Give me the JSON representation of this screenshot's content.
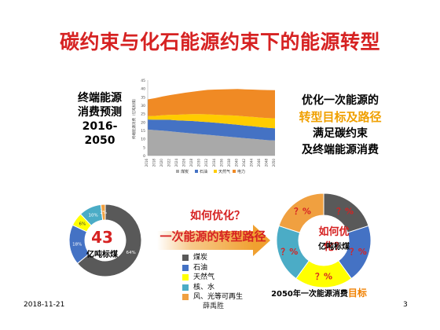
{
  "slide": {
    "title": "碳约束与化石能源约束下的能源转型",
    "left_label": [
      "终端能源",
      "消费预测",
      "2016-",
      "2050"
    ],
    "right_label": {
      "line1": "优化一次能源的",
      "line2": "转型目标及路径",
      "line3": "满足碳约束",
      "line4": "及终端能源消费"
    },
    "mid_question": "如何优化？",
    "mid_path": "一次能源的转型路径",
    "left_center_value": "43",
    "left_center_unit": "亿吨标煤",
    "right_center_question": "如何优化？",
    "right_center_unit": "亿吨标煤",
    "target_caption_prefix": "2050年一次能源消费",
    "target_caption_highlight": "目标",
    "unknown_pct": "？%",
    "footer": {
      "date": "2018-11-21",
      "author": "薛禹胜",
      "page": "3"
    }
  },
  "colors": {
    "coal": "#595959",
    "oil": "#4472c4",
    "gas": "#ffff00",
    "nuclear_hydro": "#4bacc6",
    "renewable": "#f0a040",
    "title_red": "#d62222",
    "highlight_orange": "#f0a000"
  },
  "legend": {
    "items": [
      "煤炭",
      "石油",
      "天然气",
      "核、水",
      "风、光等可再生"
    ]
  },
  "chart_data": [
    {
      "type": "area",
      "title": "",
      "ylabel": "终端能源消费（亿吨标煤）",
      "ylim": [
        0,
        45
      ],
      "y_ticks": [
        0,
        5,
        10,
        15,
        20,
        25,
        30,
        35,
        40,
        45
      ],
      "x": [
        "2016",
        "2018",
        "2020",
        "2022",
        "2024",
        "2026",
        "2028",
        "2030",
        "2032",
        "2034",
        "2036",
        "2038",
        "2040",
        "2042",
        "2044",
        "2046",
        "2048",
        "2050"
      ],
      "stacked": true,
      "series": [
        {
          "name": "煤炭",
          "values": [
            15.5,
            15.2,
            14.9,
            14.5,
            14.0,
            13.6,
            13.2,
            12.8,
            12.4,
            12.0,
            11.6,
            11.2,
            10.8,
            10.4,
            10.0,
            9.6,
            9.2,
            9.0
          ]
        },
        {
          "name": "石油",
          "values": [
            6.0,
            6.2,
            6.5,
            6.8,
            7.0,
            7.2,
            7.4,
            7.5,
            7.6,
            7.6,
            7.6,
            7.6,
            7.6,
            7.5,
            7.5,
            7.4,
            7.4,
            7.3
          ]
        },
        {
          "name": "天然气",
          "values": [
            2.0,
            2.3,
            2.7,
            3.0,
            3.4,
            3.8,
            4.1,
            4.4,
            4.6,
            4.8,
            5.0,
            5.2,
            5.4,
            5.5,
            5.6,
            5.7,
            5.8,
            5.9
          ]
        },
        {
          "name": "电力",
          "values": [
            10.0,
            10.6,
            11.2,
            11.8,
            12.4,
            12.9,
            13.4,
            14.0,
            14.6,
            15.0,
            15.3,
            15.6,
            15.9,
            16.1,
            16.3,
            16.5,
            16.7,
            16.8
          ]
        }
      ],
      "legend": "bottom"
    },
    {
      "type": "pie",
      "donut": true,
      "labels": [
        "煤炭",
        "石油",
        "天然气",
        "核、水",
        "风、光等可再生"
      ],
      "values": [
        64,
        18,
        6,
        10,
        2
      ],
      "value_labels": [
        "64%",
        "18%",
        "6%",
        "10%",
        "2%"
      ]
    },
    {
      "type": "pie",
      "donut": true,
      "labels": [
        "煤炭",
        "石油",
        "天然气",
        "核、水",
        "风、光等可再生"
      ],
      "values": [
        20,
        20,
        20,
        20,
        20
      ],
      "value_labels": [
        "？%",
        "？%",
        "？%",
        "？%",
        "？%"
      ]
    }
  ]
}
